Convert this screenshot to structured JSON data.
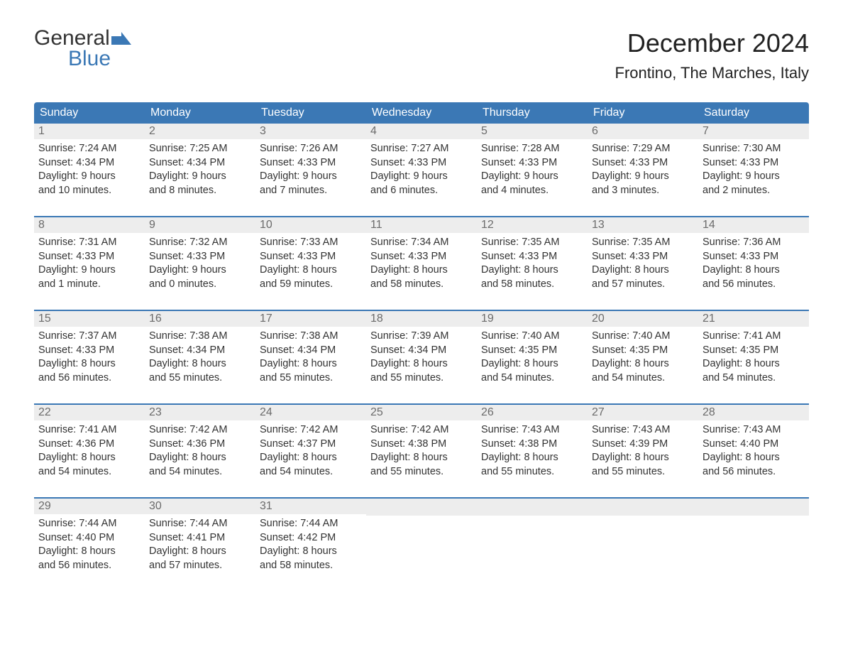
{
  "brand": {
    "word1": "General",
    "word2": "Blue"
  },
  "title": "December 2024",
  "location": "Frontino, The Marches, Italy",
  "colors": {
    "header_bg": "#3b78b5",
    "header_text": "#ffffff",
    "daynum_bg": "#ededed",
    "daynum_text": "#6b6b6b",
    "body_text": "#333333",
    "border": "#3b78b5",
    "page_bg": "#ffffff",
    "logo_blue": "#3b78b5"
  },
  "weekdays": [
    "Sunday",
    "Monday",
    "Tuesday",
    "Wednesday",
    "Thursday",
    "Friday",
    "Saturday"
  ],
  "labels": {
    "sunrise": "Sunrise:",
    "sunset": "Sunset:",
    "daylight": "Daylight:"
  },
  "days": [
    {
      "n": "1",
      "sunrise": "7:24 AM",
      "sunset": "4:34 PM",
      "dl1": "9 hours",
      "dl2": "and 10 minutes."
    },
    {
      "n": "2",
      "sunrise": "7:25 AM",
      "sunset": "4:34 PM",
      "dl1": "9 hours",
      "dl2": "and 8 minutes."
    },
    {
      "n": "3",
      "sunrise": "7:26 AM",
      "sunset": "4:33 PM",
      "dl1": "9 hours",
      "dl2": "and 7 minutes."
    },
    {
      "n": "4",
      "sunrise": "7:27 AM",
      "sunset": "4:33 PM",
      "dl1": "9 hours",
      "dl2": "and 6 minutes."
    },
    {
      "n": "5",
      "sunrise": "7:28 AM",
      "sunset": "4:33 PM",
      "dl1": "9 hours",
      "dl2": "and 4 minutes."
    },
    {
      "n": "6",
      "sunrise": "7:29 AM",
      "sunset": "4:33 PM",
      "dl1": "9 hours",
      "dl2": "and 3 minutes."
    },
    {
      "n": "7",
      "sunrise": "7:30 AM",
      "sunset": "4:33 PM",
      "dl1": "9 hours",
      "dl2": "and 2 minutes."
    },
    {
      "n": "8",
      "sunrise": "7:31 AM",
      "sunset": "4:33 PM",
      "dl1": "9 hours",
      "dl2": "and 1 minute."
    },
    {
      "n": "9",
      "sunrise": "7:32 AM",
      "sunset": "4:33 PM",
      "dl1": "9 hours",
      "dl2": "and 0 minutes."
    },
    {
      "n": "10",
      "sunrise": "7:33 AM",
      "sunset": "4:33 PM",
      "dl1": "8 hours",
      "dl2": "and 59 minutes."
    },
    {
      "n": "11",
      "sunrise": "7:34 AM",
      "sunset": "4:33 PM",
      "dl1": "8 hours",
      "dl2": "and 58 minutes."
    },
    {
      "n": "12",
      "sunrise": "7:35 AM",
      "sunset": "4:33 PM",
      "dl1": "8 hours",
      "dl2": "and 58 minutes."
    },
    {
      "n": "13",
      "sunrise": "7:35 AM",
      "sunset": "4:33 PM",
      "dl1": "8 hours",
      "dl2": "and 57 minutes."
    },
    {
      "n": "14",
      "sunrise": "7:36 AM",
      "sunset": "4:33 PM",
      "dl1": "8 hours",
      "dl2": "and 56 minutes."
    },
    {
      "n": "15",
      "sunrise": "7:37 AM",
      "sunset": "4:33 PM",
      "dl1": "8 hours",
      "dl2": "and 56 minutes."
    },
    {
      "n": "16",
      "sunrise": "7:38 AM",
      "sunset": "4:34 PM",
      "dl1": "8 hours",
      "dl2": "and 55 minutes."
    },
    {
      "n": "17",
      "sunrise": "7:38 AM",
      "sunset": "4:34 PM",
      "dl1": "8 hours",
      "dl2": "and 55 minutes."
    },
    {
      "n": "18",
      "sunrise": "7:39 AM",
      "sunset": "4:34 PM",
      "dl1": "8 hours",
      "dl2": "and 55 minutes."
    },
    {
      "n": "19",
      "sunrise": "7:40 AM",
      "sunset": "4:35 PM",
      "dl1": "8 hours",
      "dl2": "and 54 minutes."
    },
    {
      "n": "20",
      "sunrise": "7:40 AM",
      "sunset": "4:35 PM",
      "dl1": "8 hours",
      "dl2": "and 54 minutes."
    },
    {
      "n": "21",
      "sunrise": "7:41 AM",
      "sunset": "4:35 PM",
      "dl1": "8 hours",
      "dl2": "and 54 minutes."
    },
    {
      "n": "22",
      "sunrise": "7:41 AM",
      "sunset": "4:36 PM",
      "dl1": "8 hours",
      "dl2": "and 54 minutes."
    },
    {
      "n": "23",
      "sunrise": "7:42 AM",
      "sunset": "4:36 PM",
      "dl1": "8 hours",
      "dl2": "and 54 minutes."
    },
    {
      "n": "24",
      "sunrise": "7:42 AM",
      "sunset": "4:37 PM",
      "dl1": "8 hours",
      "dl2": "and 54 minutes."
    },
    {
      "n": "25",
      "sunrise": "7:42 AM",
      "sunset": "4:38 PM",
      "dl1": "8 hours",
      "dl2": "and 55 minutes."
    },
    {
      "n": "26",
      "sunrise": "7:43 AM",
      "sunset": "4:38 PM",
      "dl1": "8 hours",
      "dl2": "and 55 minutes."
    },
    {
      "n": "27",
      "sunrise": "7:43 AM",
      "sunset": "4:39 PM",
      "dl1": "8 hours",
      "dl2": "and 55 minutes."
    },
    {
      "n": "28",
      "sunrise": "7:43 AM",
      "sunset": "4:40 PM",
      "dl1": "8 hours",
      "dl2": "and 56 minutes."
    },
    {
      "n": "29",
      "sunrise": "7:44 AM",
      "sunset": "4:40 PM",
      "dl1": "8 hours",
      "dl2": "and 56 minutes."
    },
    {
      "n": "30",
      "sunrise": "7:44 AM",
      "sunset": "4:41 PM",
      "dl1": "8 hours",
      "dl2": "and 57 minutes."
    },
    {
      "n": "31",
      "sunrise": "7:44 AM",
      "sunset": "4:42 PM",
      "dl1": "8 hours",
      "dl2": "and 58 minutes."
    }
  ],
  "layout": {
    "type": "calendar-table",
    "columns": 7,
    "week_start": "Sunday",
    "first_day_column": 0,
    "total_days": 31,
    "trailing_empty_cells": 4
  }
}
